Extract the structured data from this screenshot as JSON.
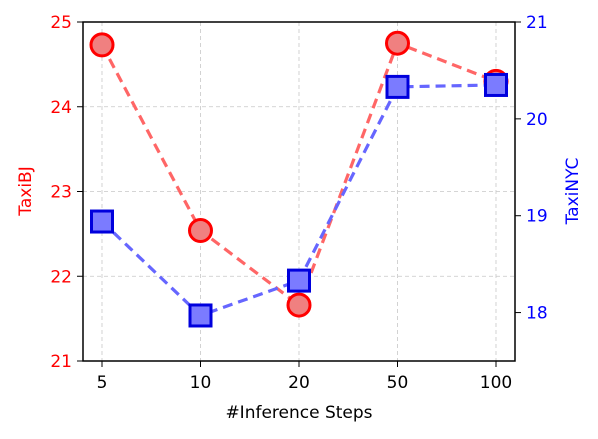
{
  "chart_data": {
    "type": "line",
    "categories": [
      "5",
      "10",
      "20",
      "50",
      "100"
    ],
    "xlabel": "#Inference Steps",
    "left_axis": {
      "label": "TaxiBJ",
      "color": "#ff0000",
      "ylim": [
        21,
        25
      ],
      "ticks": [
        "21",
        "22",
        "23",
        "24",
        "25"
      ]
    },
    "right_axis": {
      "label": "TaxiNYC",
      "color": "#0000ff",
      "ylim": [
        17.5,
        21
      ],
      "ticks": [
        "18",
        "19",
        "20",
        "21"
      ]
    },
    "series": [
      {
        "axis": "left",
        "marker": "circle",
        "line_color": "#ff6666",
        "marker_fill": "#f08080",
        "marker_edge": "#ff0000",
        "values": [
          24.73,
          22.54,
          21.66,
          24.75,
          24.3
        ]
      },
      {
        "axis": "right",
        "marker": "square",
        "line_color": "#6666ff",
        "marker_fill": "#7b7bff",
        "marker_edge": "#0000dd",
        "values": [
          18.94,
          17.97,
          18.33,
          20.33,
          20.35
        ]
      }
    ],
    "grid": true,
    "line_style": "dashed"
  }
}
